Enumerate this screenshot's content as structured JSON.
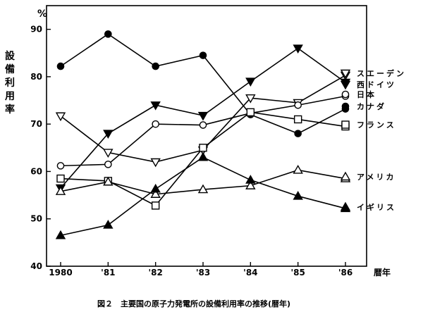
{
  "chart_data": {
    "type": "line",
    "categories": [
      "1980",
      "'81",
      "'82",
      "'83",
      "'84",
      "'85",
      "'86"
    ],
    "xlabel": "暦年",
    "ylabel": "設備利用率",
    "y_unit": "%",
    "ylim": [
      40,
      95
    ],
    "yticks": [
      40,
      50,
      60,
      70,
      80,
      90
    ],
    "caption": "図２　主要国の原子力発電所の設備利用率の推移(暦年)",
    "series": [
      {
        "name": "スエーデン",
        "marker": "triangle-down-open",
        "values": [
          71.7,
          64.0,
          62.0,
          64.5,
          75.5,
          74.5,
          80.3
        ]
      },
      {
        "name": "西ドイツ",
        "marker": "triangle-down-filled",
        "values": [
          56.5,
          68.0,
          74.0,
          71.8,
          79.0,
          86.0,
          78.8
        ]
      },
      {
        "name": "日本",
        "marker": "circle-open",
        "values": [
          61.2,
          61.5,
          70.0,
          69.8,
          72.3,
          74.0,
          75.9
        ]
      },
      {
        "name": "カナダ",
        "marker": "circle-filled",
        "values": [
          82.2,
          89.0,
          82.2,
          84.5,
          72.0,
          68.0,
          73.2
        ]
      },
      {
        "name": "フランス",
        "marker": "square-open",
        "values": [
          58.5,
          58.0,
          52.8,
          65.0,
          72.5,
          71.0,
          69.5
        ]
      },
      {
        "name": "アメリカ",
        "marker": "triangle-up-open",
        "values": [
          55.8,
          57.8,
          55.2,
          56.2,
          57.0,
          60.3,
          58.5
        ]
      },
      {
        "name": "イギリス",
        "marker": "triangle-up-filled",
        "values": [
          46.5,
          48.7,
          56.3,
          63.0,
          58.2,
          54.8,
          52.2
        ]
      }
    ]
  }
}
